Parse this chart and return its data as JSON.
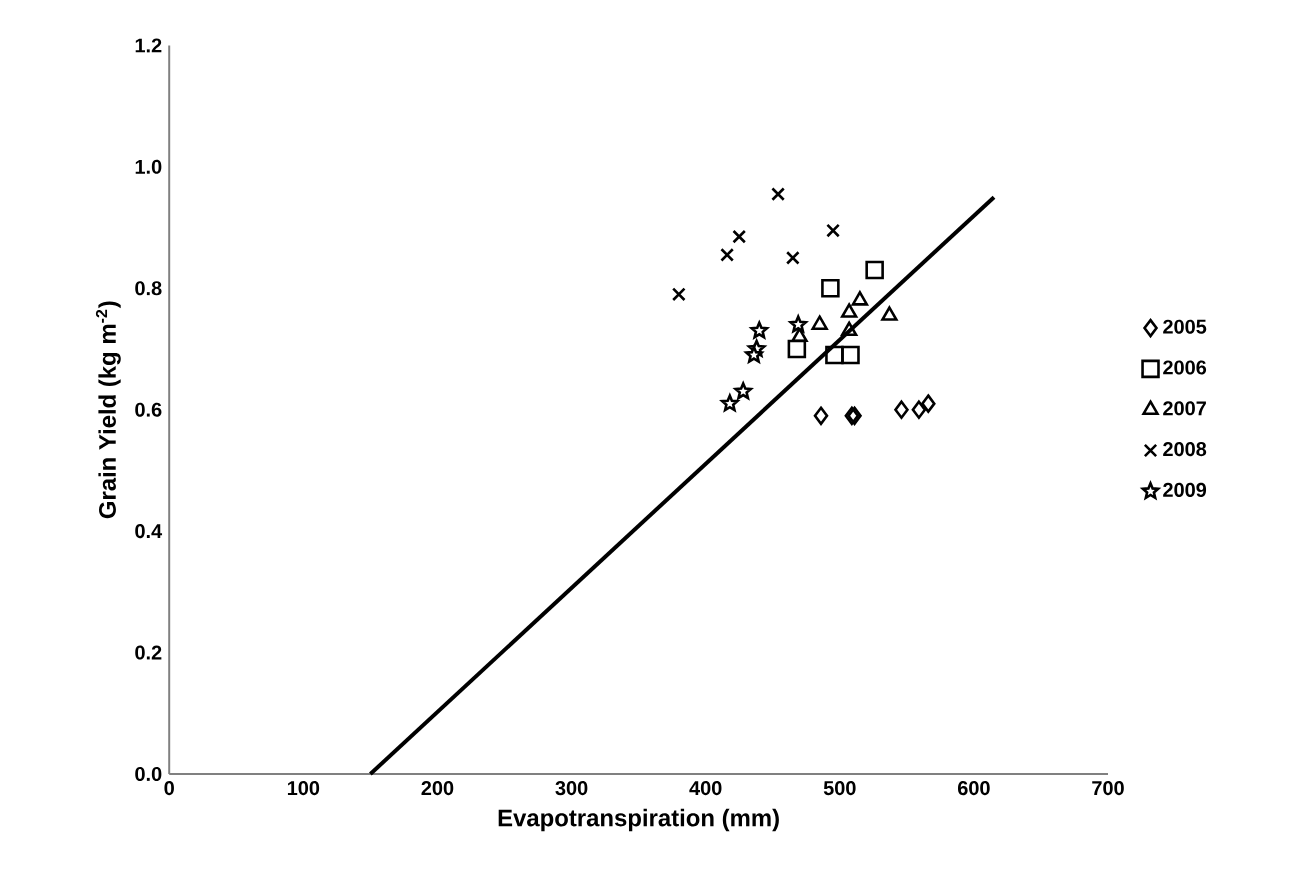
{
  "chart_data": {
    "type": "scatter",
    "xlabel": "Evapotranspiration (mm)",
    "ylabel": "Grain Yield (kg m$^{-2}$)",
    "xlim": [
      0,
      700
    ],
    "ylim": [
      0,
      1.2
    ],
    "xticks": [
      0,
      100,
      200,
      300,
      400,
      500,
      600,
      700
    ],
    "yticks": [
      {
        "value": 0,
        "label": "0.0"
      },
      0.2,
      0.4,
      0.6,
      0.8,
      {
        "value": 1,
        "label": "1.0"
      },
      1.2
    ],
    "legend": "right",
    "grid": false,
    "series": [
      {
        "name": "2005",
        "color": "#000000",
        "marker": "diamond",
        "x": [
          486,
          509,
          511,
          546,
          559,
          566
        ],
        "values": [
          0.59,
          0.59,
          0.59,
          0.6,
          0.6,
          0.61
        ]
      },
      {
        "name": "2006",
        "color": "#000000",
        "marker": "square",
        "x": [
          493,
          526,
          468,
          496,
          508
        ],
        "values": [
          0.8,
          0.83,
          0.7,
          0.69,
          0.69
        ]
      },
      {
        "name": "2007",
        "color": "#000000",
        "marker": "triangle",
        "x": [
          485,
          537,
          515,
          507,
          470,
          507
        ],
        "values": [
          0.74,
          0.755,
          0.78,
          0.73,
          0.72,
          0.76
        ]
      },
      {
        "name": "2008",
        "color": "#000000",
        "marker": "cross",
        "x": [
          425,
          416,
          495,
          465,
          454,
          380
        ],
        "values": [
          0.885,
          0.855,
          0.895,
          0.85,
          0.955,
          0.79
        ]
      },
      {
        "name": "2009",
        "color": "#000000",
        "marker": "star",
        "x": [
          440,
          438,
          469,
          428,
          418,
          436
        ],
        "values": [
          0.73,
          0.7,
          0.74,
          0.63,
          0.61,
          0.69
        ]
      },
      {
        "type": "line",
        "color": "#000000",
        "x": [
          150,
          615
        ],
        "values": [
          0,
          0.95
        ]
      }
    ]
  }
}
